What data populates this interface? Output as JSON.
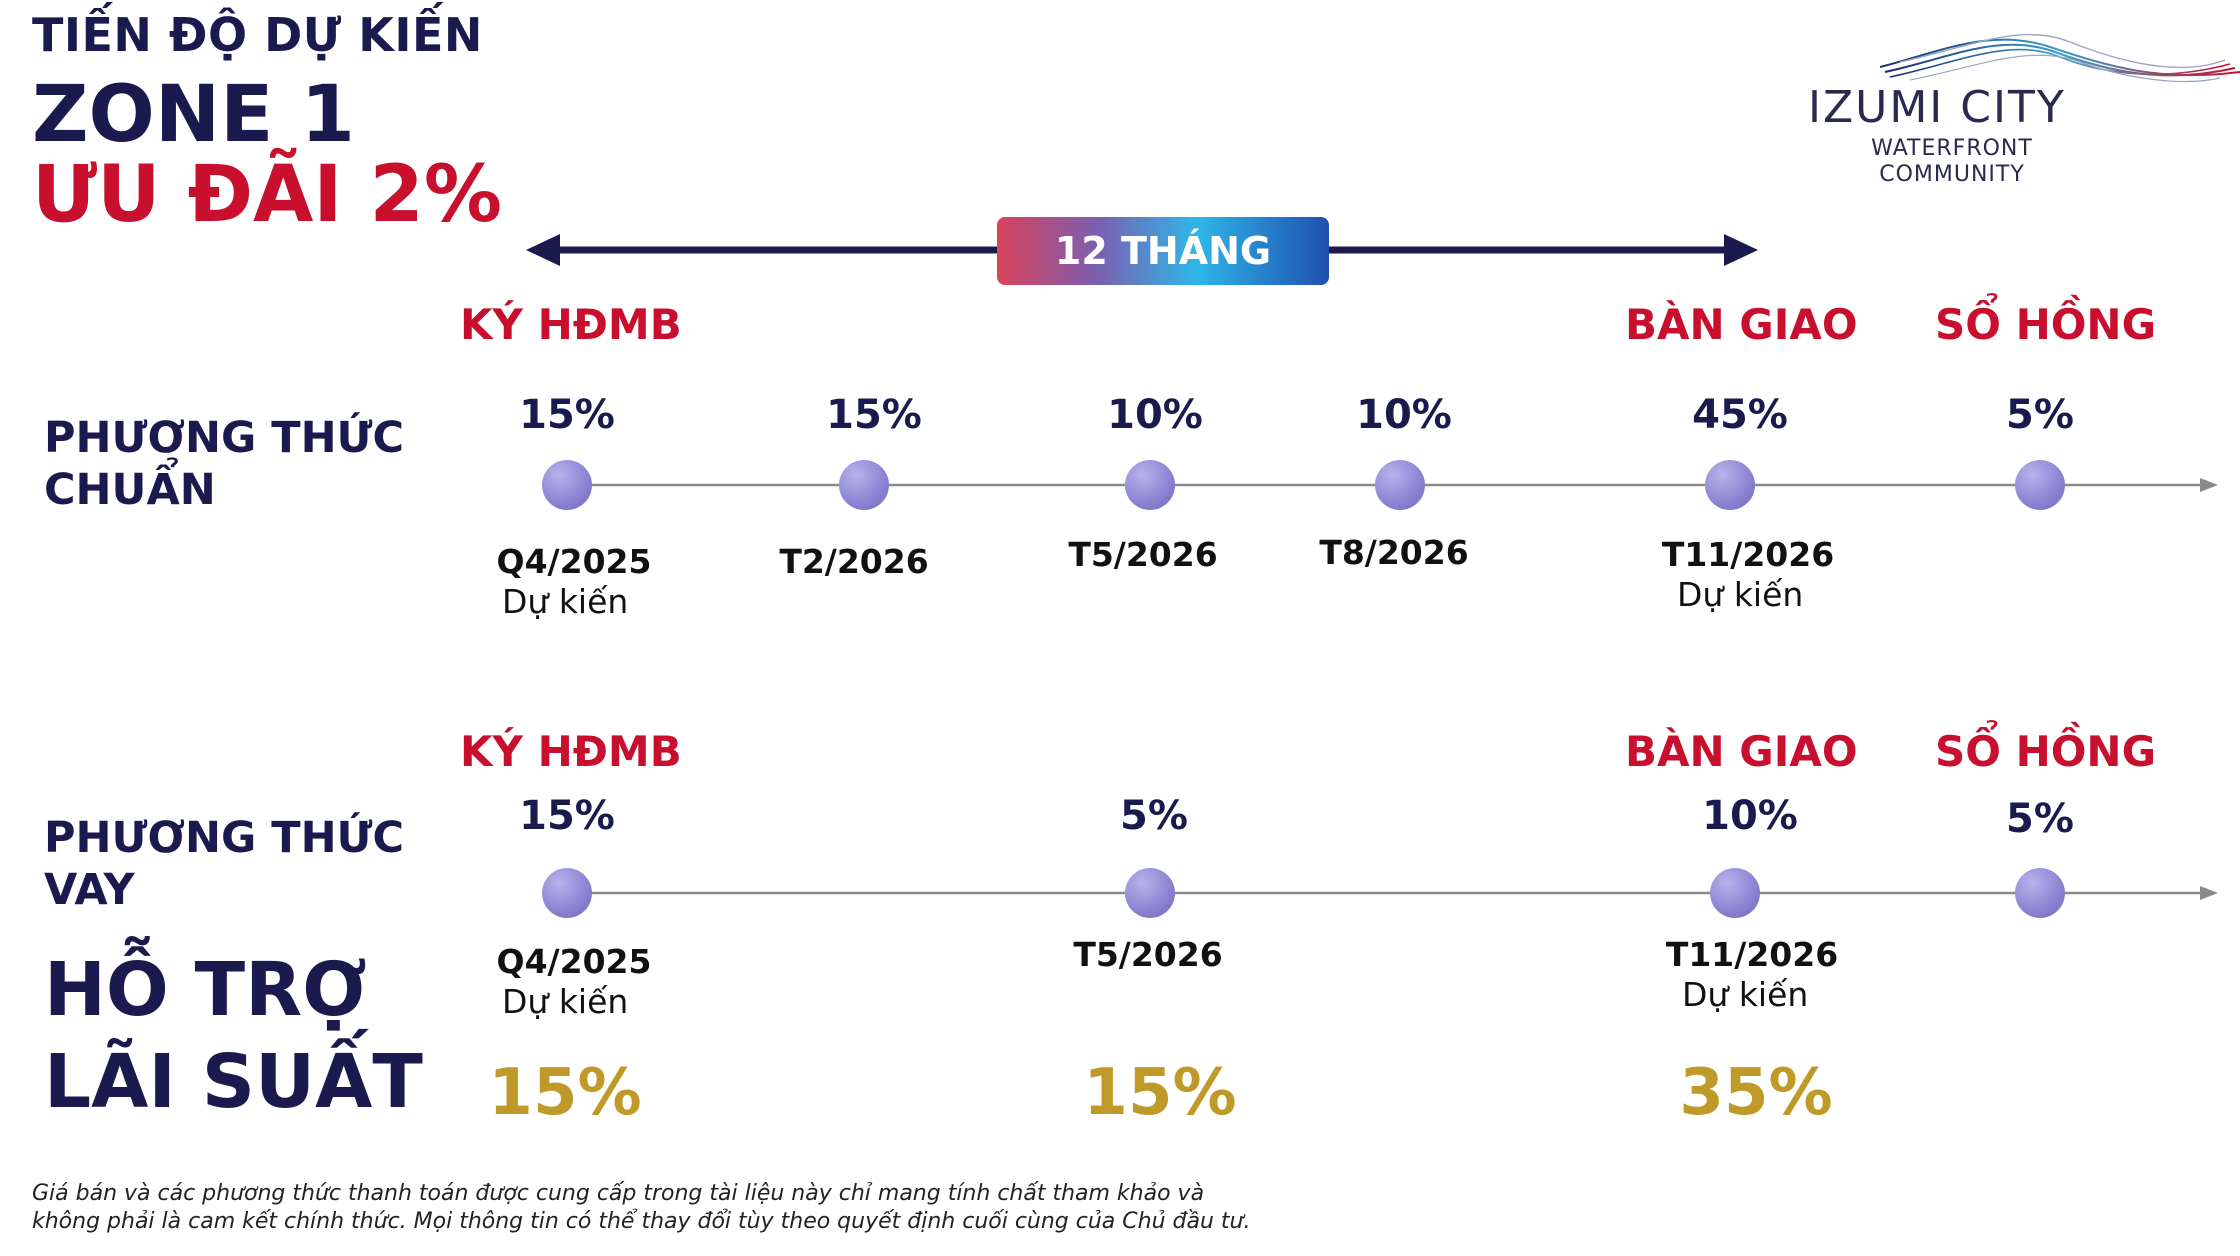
{
  "header": {
    "line1": "TIẾN ĐỘ DỰ KIẾN",
    "line2": "ZONE 1",
    "line3": "ƯU ĐÃI 2%"
  },
  "logo": {
    "name": "IZUMI CITY",
    "sub1": "WATERFRONT",
    "sub2": "COMMUNITY"
  },
  "duration_badge": "12 THÁNG",
  "milestones": {
    "sign": "KÝ HĐMB",
    "handover": "BÀN GIAO",
    "pink_book": "SỔ HỒNG"
  },
  "standard": {
    "label_line1": "PHƯƠNG THỨC",
    "label_line2": "CHUẨN",
    "steps": [
      {
        "pct": "15%",
        "date": "Q4/2025",
        "note": "Dự kiến"
      },
      {
        "pct": "15%",
        "date": "T2/2026"
      },
      {
        "pct": "10%",
        "date": "T5/2026"
      },
      {
        "pct": "10%",
        "date": "T8/2026"
      },
      {
        "pct": "45%",
        "date": "T11/2026",
        "note": "Dự kiến"
      },
      {
        "pct": "5%"
      }
    ]
  },
  "loan": {
    "label_line1": "PHƯƠNG THỨC",
    "label_line2": "VAY",
    "support_line1": "HỖ TRỢ",
    "support_line2": "LÃI SUẤT",
    "steps": [
      {
        "pct": "15%",
        "date": "Q4/2025",
        "note": "Dự kiến",
        "support": "15%"
      },
      {
        "pct": "5%",
        "date": "T5/2026",
        "support": "15%"
      },
      {
        "pct": "10%",
        "date": "T11/2026",
        "note": "Dự kiến",
        "support": "35%"
      },
      {
        "pct": "5%"
      }
    ]
  },
  "disclaimer": {
    "line1": "Giá bán và các phương thức thanh toán được cung cấp trong tài liệu này chỉ mang tính chất tham khảo và",
    "line2": "không phải là cam kết chính thức. Mọi thông tin có thể thay đổi tùy theo quyết định cuối cùng của Chủ đầu tư."
  },
  "colors": {
    "navy": "#1a1a4e",
    "red": "#c8102e",
    "gold": "#c09a28",
    "dot": "#8e86d4"
  }
}
